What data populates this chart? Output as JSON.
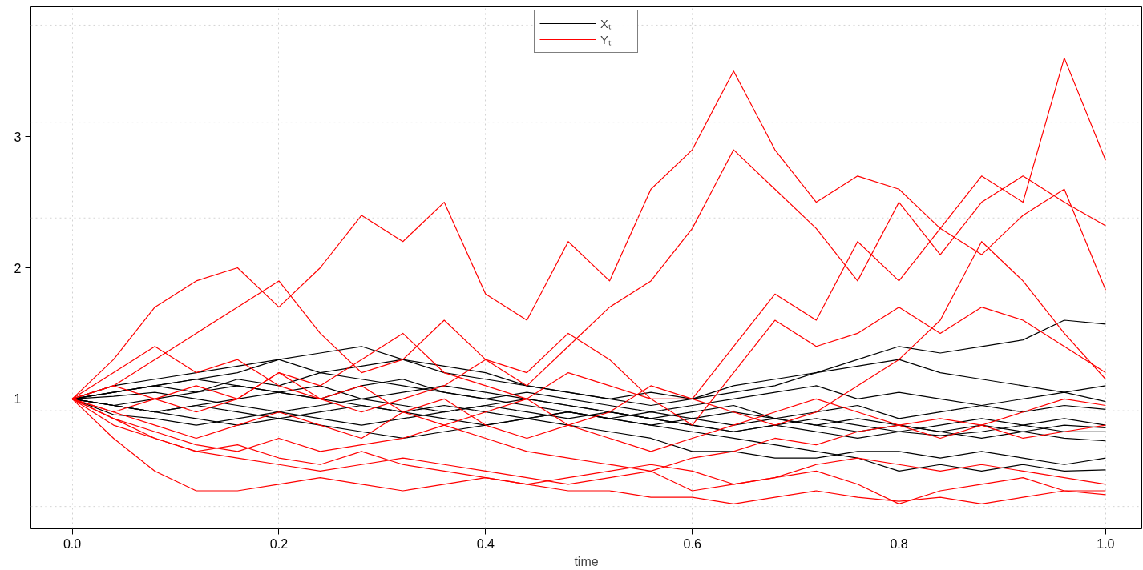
{
  "chart_data": {
    "type": "line",
    "xlabel": "time",
    "x": [
      0,
      0.04,
      0.08,
      0.12,
      0.16,
      0.2,
      0.24,
      0.28,
      0.32,
      0.36,
      0.4,
      0.44,
      0.48,
      0.52,
      0.56,
      0.6,
      0.64,
      0.68,
      0.72,
      0.76,
      0.8,
      0.84,
      0.88,
      0.92,
      0.96,
      1.0
    ],
    "xlim": [
      -0.04,
      1.035
    ],
    "ylim": [
      0.01,
      3.99
    ],
    "xticks": [
      {
        "value": 0,
        "label": "0.0"
      },
      {
        "value": 0.2,
        "label": "0.2"
      },
      {
        "value": 0.4,
        "label": "0.4"
      },
      {
        "value": 0.6,
        "label": "0.6"
      },
      {
        "value": 0.8,
        "label": "0.8"
      },
      {
        "value": 1,
        "label": "1.0"
      }
    ],
    "yticks": [
      1,
      2,
      3
    ],
    "grid": "x",
    "legend": "top",
    "line_style": "solid",
    "marker": "none",
    "ref_lines": [
      {
        "axis": "y",
        "value": 0.18,
        "color": "#d3d3d3",
        "line_style": "dotted"
      },
      {
        "axis": "y",
        "value": 0.91,
        "color": "#d3d3d3",
        "line_style": "dotted"
      },
      {
        "axis": "y",
        "value": 1.64,
        "color": "#d3d3d3",
        "line_style": "dotted"
      },
      {
        "axis": "y",
        "value": 2.38,
        "color": "#d3d3d3",
        "line_style": "dotted"
      },
      {
        "axis": "y",
        "value": 3.11,
        "color": "#d3d3d3",
        "line_style": "dotted"
      },
      {
        "axis": "y",
        "value": 3.85,
        "color": "#d3d3d3",
        "line_style": "dotted"
      }
    ],
    "series": [
      {
        "name": "Xₜ",
        "color": "#000000",
        "values": [
          1.0,
          1.05,
          1.1,
          1.15,
          1.2,
          1.3,
          1.35,
          1.4,
          1.3,
          1.25,
          1.2,
          1.1,
          1.05,
          1.0,
          1.05,
          1.0,
          1.1,
          1.15,
          1.2,
          1.3,
          1.4,
          1.35,
          1.4,
          1.45,
          1.6,
          1.57
        ]
      },
      {
        "color": "#000000",
        "values": [
          1.0,
          1.1,
          1.15,
          1.2,
          1.25,
          1.3,
          1.2,
          1.25,
          1.3,
          1.2,
          1.15,
          1.1,
          1.05,
          1.0,
          0.95,
          1.0,
          1.05,
          1.1,
          1.2,
          1.25,
          1.3,
          1.2,
          1.15,
          1.1,
          1.05,
          1.1
        ]
      },
      {
        "color": "#000000",
        "values": [
          1.0,
          1.05,
          1.1,
          1.05,
          1.15,
          1.1,
          1.2,
          1.15,
          1.1,
          1.05,
          1.0,
          1.05,
          1.0,
          0.95,
          0.9,
          0.95,
          1.0,
          1.05,
          1.1,
          1.0,
          1.05,
          1.0,
          0.95,
          1.0,
          1.05,
          0.98
        ]
      },
      {
        "color": "#000000",
        "values": [
          1.0,
          0.95,
          1.0,
          1.05,
          1.1,
          1.05,
          1.0,
          1.1,
          1.15,
          1.05,
          1.0,
          0.95,
          0.9,
          0.85,
          0.9,
          0.85,
          0.8,
          0.85,
          0.9,
          0.95,
          0.85,
          0.9,
          0.95,
          0.9,
          0.95,
          0.92
        ]
      },
      {
        "color": "#000000",
        "values": [
          1.0,
          0.95,
          0.9,
          0.95,
          1.0,
          1.05,
          1.1,
          1.0,
          0.95,
          0.9,
          0.95,
          0.9,
          0.85,
          0.9,
          0.85,
          0.8,
          0.75,
          0.8,
          0.85,
          0.8,
          0.75,
          0.8,
          0.85,
          0.8,
          0.85,
          0.8
        ]
      },
      {
        "color": "#000000",
        "values": [
          1.0,
          1.02,
          1.05,
          1.0,
          0.95,
          0.9,
          0.95,
          1.0,
          1.05,
          1.1,
          1.05,
          1.0,
          0.95,
          0.9,
          0.85,
          0.9,
          0.95,
          0.85,
          0.8,
          0.75,
          0.8,
          0.75,
          0.7,
          0.75,
          0.8,
          0.78
        ]
      },
      {
        "color": "#000000",
        "values": [
          1.0,
          0.88,
          0.85,
          0.8,
          0.85,
          0.9,
          0.85,
          0.8,
          0.85,
          0.9,
          0.95,
          1.0,
          0.95,
          0.9,
          0.85,
          0.8,
          0.75,
          0.8,
          0.75,
          0.7,
          0.75,
          0.72,
          0.75,
          0.8,
          0.75,
          0.75
        ]
      },
      {
        "color": "#000000",
        "values": [
          1.0,
          0.95,
          0.9,
          0.85,
          0.8,
          0.85,
          0.8,
          0.75,
          0.7,
          0.75,
          0.8,
          0.85,
          0.9,
          0.85,
          0.8,
          0.85,
          0.9,
          0.85,
          0.8,
          0.85,
          0.8,
          0.75,
          0.8,
          0.75,
          0.7,
          0.68
        ]
      },
      {
        "color": "#000000",
        "values": [
          1.0,
          1.05,
          1.1,
          1.15,
          1.1,
          1.05,
          1.0,
          0.95,
          0.9,
          0.95,
          0.9,
          0.85,
          0.8,
          0.75,
          0.7,
          0.6,
          0.6,
          0.55,
          0.55,
          0.6,
          0.6,
          0.55,
          0.6,
          0.55,
          0.5,
          0.55
        ]
      },
      {
        "color": "#000000",
        "values": [
          1.0,
          0.95,
          0.9,
          0.95,
          0.9,
          0.85,
          0.9,
          0.95,
          0.9,
          0.85,
          0.8,
          0.85,
          0.9,
          0.85,
          0.8,
          0.75,
          0.7,
          0.65,
          0.6,
          0.55,
          0.45,
          0.5,
          0.45,
          0.5,
          0.45,
          0.46
        ]
      },
      {
        "name": "Yₜ",
        "color": "#ff0000",
        "values": [
          1.0,
          1.3,
          1.7,
          1.9,
          2.0,
          1.7,
          2.0,
          2.4,
          2.2,
          2.5,
          1.8,
          1.6,
          2.2,
          1.9,
          2.6,
          2.9,
          3.5,
          2.9,
          2.5,
          2.7,
          2.6,
          2.3,
          2.7,
          2.5,
          3.6,
          2.82
        ]
      },
      {
        "color": "#ff0000",
        "values": [
          1.0,
          1.1,
          1.3,
          1.5,
          1.7,
          1.9,
          1.5,
          1.2,
          1.3,
          1.6,
          1.3,
          1.1,
          1.4,
          1.7,
          1.9,
          2.3,
          2.9,
          2.6,
          2.3,
          1.9,
          2.5,
          2.1,
          2.5,
          2.7,
          2.5,
          2.32
        ]
      },
      {
        "color": "#ff0000",
        "values": [
          1.0,
          1.1,
          1.0,
          0.9,
          1.0,
          1.2,
          1.1,
          1.3,
          1.5,
          1.2,
          1.1,
          1.0,
          1.2,
          1.1,
          1.0,
          1.0,
          1.4,
          1.8,
          1.6,
          2.2,
          1.9,
          2.3,
          2.1,
          2.4,
          2.6,
          1.83
        ]
      },
      {
        "color": "#ff0000",
        "values": [
          1.0,
          1.2,
          1.4,
          1.2,
          1.3,
          1.1,
          1.0,
          0.9,
          1.0,
          1.1,
          1.3,
          1.2,
          1.5,
          1.3,
          1.0,
          0.8,
          1.2,
          1.6,
          1.4,
          1.5,
          1.7,
          1.5,
          1.7,
          1.6,
          1.4,
          1.2
        ]
      },
      {
        "color": "#ff0000",
        "values": [
          1.0,
          0.9,
          1.0,
          1.1,
          1.0,
          1.2,
          1.0,
          1.1,
          0.9,
          0.8,
          0.9,
          1.0,
          0.8,
          0.9,
          1.1,
          1.0,
          0.9,
          0.8,
          0.9,
          1.1,
          1.3,
          1.6,
          2.2,
          1.9,
          1.5,
          1.15
        ]
      },
      {
        "color": "#ff0000",
        "values": [
          1.0,
          0.9,
          0.8,
          0.7,
          0.8,
          0.9,
          0.8,
          0.7,
          0.9,
          1.0,
          0.8,
          0.7,
          0.8,
          0.7,
          0.6,
          0.7,
          0.8,
          0.9,
          1.0,
          0.9,
          0.8,
          0.7,
          0.8,
          0.9,
          1.0,
          0.95
        ]
      },
      {
        "color": "#ff0000",
        "values": [
          1.0,
          0.85,
          0.75,
          0.65,
          0.6,
          0.7,
          0.6,
          0.65,
          0.7,
          0.8,
          0.7,
          0.6,
          0.55,
          0.5,
          0.45,
          0.55,
          0.6,
          0.7,
          0.65,
          0.75,
          0.8,
          0.85,
          0.8,
          0.7,
          0.75,
          0.8
        ]
      },
      {
        "color": "#ff0000",
        "values": [
          1.0,
          0.8,
          0.7,
          0.6,
          0.55,
          0.5,
          0.45,
          0.5,
          0.55,
          0.5,
          0.45,
          0.4,
          0.35,
          0.4,
          0.45,
          0.3,
          0.35,
          0.4,
          0.5,
          0.55,
          0.5,
          0.45,
          0.5,
          0.45,
          0.4,
          0.35
        ]
      },
      {
        "color": "#ff0000",
        "values": [
          1.0,
          0.7,
          0.45,
          0.3,
          0.3,
          0.35,
          0.4,
          0.35,
          0.3,
          0.35,
          0.4,
          0.35,
          0.4,
          0.45,
          0.5,
          0.45,
          0.35,
          0.4,
          0.45,
          0.35,
          0.2,
          0.3,
          0.35,
          0.4,
          0.3,
          0.27
        ]
      },
      {
        "color": "#ff0000",
        "values": [
          1.0,
          0.85,
          0.7,
          0.6,
          0.65,
          0.55,
          0.5,
          0.6,
          0.5,
          0.45,
          0.4,
          0.35,
          0.3,
          0.3,
          0.25,
          0.25,
          0.2,
          0.25,
          0.3,
          0.25,
          0.22,
          0.25,
          0.2,
          0.25,
          0.3,
          0.3
        ]
      }
    ]
  }
}
